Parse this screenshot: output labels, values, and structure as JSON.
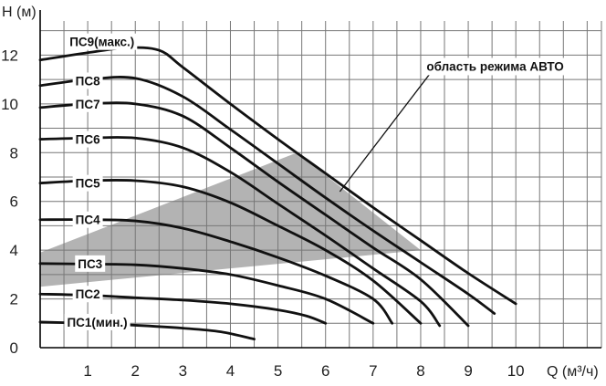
{
  "chart_data": {
    "type": "line",
    "xlabel": "Q (м³/ч)",
    "ylabel": "H (м)",
    "xlim": [
      0,
      11.8
    ],
    "ylim": [
      0,
      13.4
    ],
    "x_ticks": [
      1,
      2,
      3,
      4,
      5,
      6,
      7,
      8,
      9,
      10
    ],
    "y_ticks": [
      0,
      2,
      4,
      6,
      8,
      10,
      12
    ],
    "grid": true,
    "series": [
      {
        "name": "ПС1(мин.)",
        "label_at": [
          1.2,
          1.05
        ],
        "points": [
          [
            0,
            1.05
          ],
          [
            1,
            1.0
          ],
          [
            2,
            0.92
          ],
          [
            3,
            0.8
          ],
          [
            3.8,
            0.65
          ],
          [
            4.5,
            0.35
          ]
        ]
      },
      {
        "name": "ПС2",
        "label_at": [
          1.0,
          2.2
        ],
        "points": [
          [
            0,
            2.2
          ],
          [
            1,
            2.15
          ],
          [
            2,
            2.05
          ],
          [
            3,
            1.95
          ],
          [
            4,
            1.8
          ],
          [
            5,
            1.55
          ],
          [
            5.6,
            1.3
          ],
          [
            6,
            1.0
          ]
        ]
      },
      {
        "name": "ПС3",
        "label_at": [
          1.05,
          3.45
        ],
        "points": [
          [
            0,
            3.45
          ],
          [
            1,
            3.43
          ],
          [
            2,
            3.4
          ],
          [
            3,
            3.25
          ],
          [
            4,
            3.0
          ],
          [
            5,
            2.55
          ],
          [
            6,
            2.0
          ],
          [
            7,
            1.0
          ]
        ]
      },
      {
        "name": "ПС4",
        "label_at": [
          1.0,
          5.25
        ],
        "points": [
          [
            0,
            5.25
          ],
          [
            1,
            5.25
          ],
          [
            2,
            5.2
          ],
          [
            3,
            4.9
          ],
          [
            4,
            4.35
          ],
          [
            5,
            3.7
          ],
          [
            6,
            2.95
          ],
          [
            7,
            2.0
          ],
          [
            7.4,
            1.0
          ]
        ]
      },
      {
        "name": "ПС5",
        "label_at": [
          1.0,
          6.75
        ],
        "points": [
          [
            0,
            6.75
          ],
          [
            1,
            6.85
          ],
          [
            2,
            6.85
          ],
          [
            3,
            6.6
          ],
          [
            4,
            5.95
          ],
          [
            5,
            5.0
          ],
          [
            6,
            4.0
          ],
          [
            7,
            2.75
          ],
          [
            8,
            1.0
          ]
        ]
      },
      {
        "name": "ПС6",
        "label_at": [
          1.0,
          8.55
        ],
        "points": [
          [
            0,
            8.55
          ],
          [
            1,
            8.6
          ],
          [
            2,
            8.6
          ],
          [
            3,
            8.2
          ],
          [
            4,
            7.2
          ],
          [
            5,
            5.9
          ],
          [
            6,
            4.6
          ],
          [
            7,
            3.25
          ],
          [
            8,
            1.9
          ],
          [
            8.4,
            0.9
          ]
        ]
      },
      {
        "name": "ПС7",
        "label_at": [
          1.0,
          10.0
        ],
        "points": [
          [
            0,
            9.85
          ],
          [
            1,
            10.0
          ],
          [
            2,
            10.0
          ],
          [
            3,
            9.5
          ],
          [
            4,
            8.2
          ],
          [
            5,
            6.8
          ],
          [
            6,
            5.45
          ],
          [
            7,
            4.1
          ],
          [
            8,
            2.8
          ],
          [
            9,
            0.9
          ]
        ]
      },
      {
        "name": "ПС8",
        "label_at": [
          1.0,
          10.95
        ],
        "points": [
          [
            0,
            10.75
          ],
          [
            1,
            11.0
          ],
          [
            2,
            11.05
          ],
          [
            3,
            10.3
          ],
          [
            4,
            8.95
          ],
          [
            5,
            7.55
          ],
          [
            6,
            6.15
          ],
          [
            7,
            4.8
          ],
          [
            8,
            3.5
          ],
          [
            9,
            2.2
          ],
          [
            9.55,
            1.4
          ]
        ]
      },
      {
        "name": "ПС9(макс.)",
        "label_at": [
          1.3,
          12.55
        ],
        "points": [
          [
            0,
            11.8
          ],
          [
            1,
            12.1
          ],
          [
            1.8,
            12.3
          ],
          [
            2.5,
            12.2
          ],
          [
            3,
            11.5
          ],
          [
            4,
            10.0
          ],
          [
            5,
            8.55
          ],
          [
            6,
            7.15
          ],
          [
            7,
            5.75
          ],
          [
            8,
            4.4
          ],
          [
            9,
            3.05
          ],
          [
            10,
            1.8
          ]
        ]
      }
    ],
    "auto_region": {
      "label": "область режима АВТО",
      "fill": "#b3b3b3",
      "polygon": [
        [
          0,
          3.9
        ],
        [
          5.4,
          8.0
        ],
        [
          8.0,
          4.0
        ],
        [
          0,
          2.5
        ]
      ],
      "pointer_from": [
        8.2,
        11.25
      ],
      "pointer_to": [
        6.3,
        6.4
      ]
    },
    "colors": {
      "curve": "#111111",
      "grid": "#777777",
      "region": "#b3b3b3"
    }
  }
}
